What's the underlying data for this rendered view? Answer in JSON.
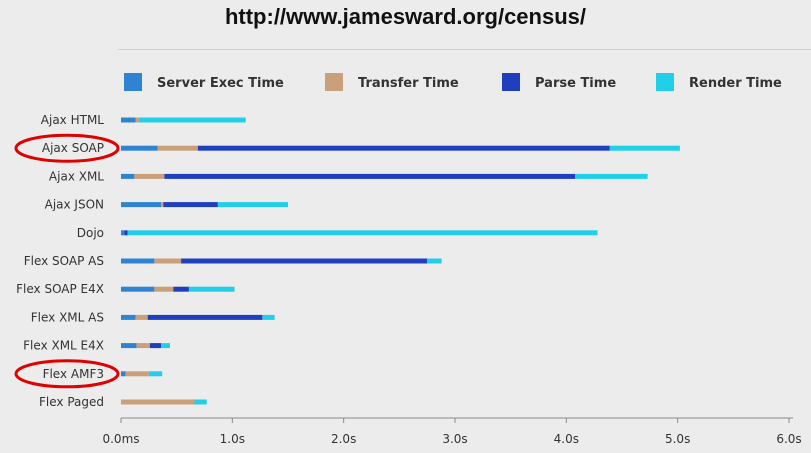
{
  "page": {
    "url_title": "http://www.jamesward.org/census/"
  },
  "chart_data": {
    "type": "bar",
    "stacked": true,
    "orientation": "horizontal",
    "categories": [
      "Ajax HTML",
      "Ajax SOAP",
      "Ajax XML",
      "Ajax JSON",
      "Dojo",
      "Flex SOAP AS",
      "Flex SOAP E4X",
      "Flex XML AS",
      "Flex XML E4X",
      "Flex AMF3",
      "Flex Paged"
    ],
    "series": [
      {
        "name": "Server Exec Time",
        "color": "#2f83d2",
        "values": [
          0.13,
          0.33,
          0.12,
          0.36,
          0.03,
          0.3,
          0.3,
          0.13,
          0.14,
          0.04,
          0.0
        ]
      },
      {
        "name": "Transfer Time",
        "color": "#c9a07a",
        "values": [
          0.03,
          0.36,
          0.27,
          0.02,
          0.0,
          0.24,
          0.17,
          0.11,
          0.12,
          0.21,
          0.66
        ]
      },
      {
        "name": "Parse Time",
        "color": "#1f3fbf",
        "values": [
          0.0,
          3.7,
          3.69,
          0.49,
          0.03,
          2.21,
          0.14,
          1.03,
          0.1,
          0.0,
          0.0
        ]
      },
      {
        "name": "Render Time",
        "color": "#22cfe8",
        "values": [
          0.96,
          0.63,
          0.65,
          0.63,
          4.22,
          0.13,
          0.41,
          0.11,
          0.08,
          0.12,
          0.11
        ]
      }
    ],
    "xticks": [
      "0.0ms",
      "1.0s",
      "2.0s",
      "3.0s",
      "4.0s",
      "5.0s",
      "6.0s"
    ],
    "xlim": [
      0,
      6
    ],
    "title": "",
    "xlabel": "",
    "ylabel": "",
    "grid": false,
    "legend_position": "top",
    "highlighted_categories": [
      "Ajax SOAP",
      "Flex AMF3"
    ],
    "highlight_color": "#e00000"
  }
}
